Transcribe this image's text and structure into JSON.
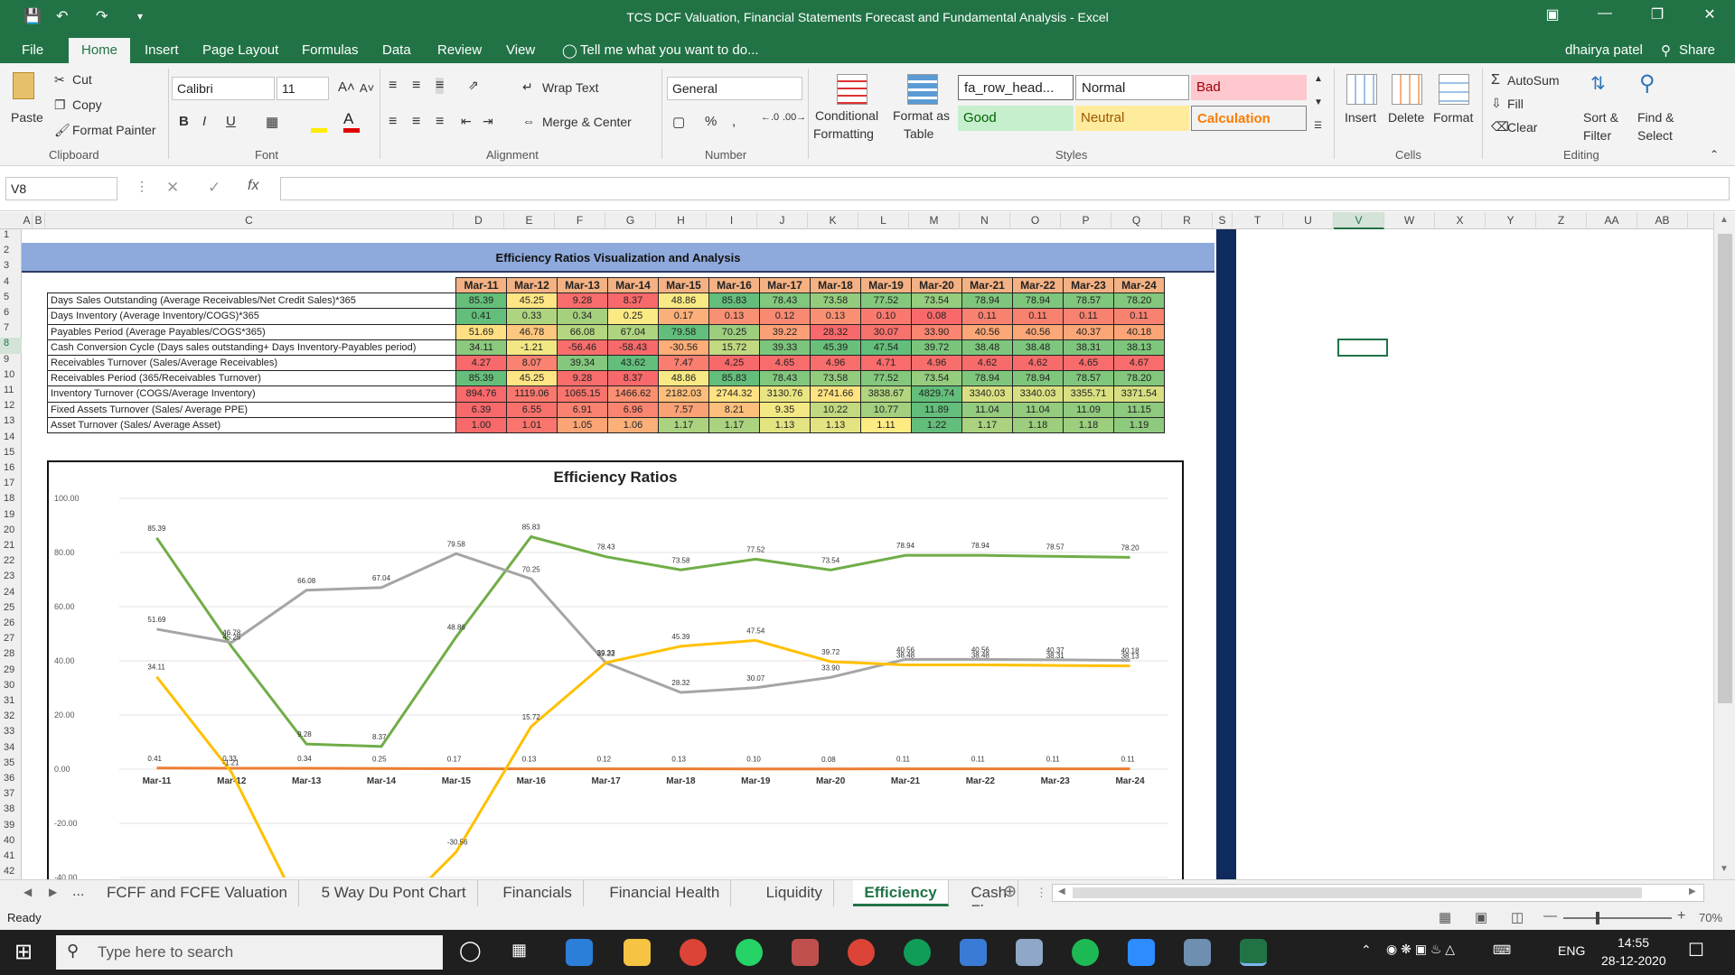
{
  "window": {
    "title": "TCS DCF Valuation, Financial Statements Forecast and Fundamental Analysis - Excel"
  },
  "menu": {
    "items": [
      "File",
      "Home",
      "Insert",
      "Page Layout",
      "Formulas",
      "Data",
      "Review",
      "View"
    ],
    "tell_me": "Tell me what you want to do...",
    "user": "dhairya patel",
    "share": "Share"
  },
  "ribbon": {
    "clipboard": {
      "paste": "Paste",
      "cut": "Cut",
      "copy": "Copy",
      "format_painter": "Format Painter",
      "label": "Clipboard"
    },
    "font": {
      "name": "Calibri",
      "size": "11",
      "label": "Font"
    },
    "alignment": {
      "wrap": "Wrap Text",
      "merge": "Merge & Center",
      "label": "Alignment"
    },
    "number": {
      "format": "General",
      "label": "Number"
    },
    "styles": {
      "conditional": "Conditional",
      "formatting": "Formatting",
      "format_as": "Format as",
      "table": "Table",
      "cell1": "fa_row_head...",
      "normal": "Normal",
      "bad": "Bad",
      "good": "Good",
      "neutral": "Neutral",
      "calculation": "Calculation",
      "label": "Styles"
    },
    "cells": {
      "insert": "Insert",
      "delete": "Delete",
      "format": "Format",
      "label": "Cells"
    },
    "editing": {
      "autosum": "AutoSum",
      "fill": "Fill",
      "clear": "Clear",
      "sort": "Sort &",
      "filter": "Filter",
      "find": "Find &",
      "select": "Select",
      "label": "Editing"
    }
  },
  "formula_bar": {
    "name_box": "V8",
    "formula": ""
  },
  "columns": [
    "A",
    "B",
    "C",
    "D",
    "E",
    "F",
    "G",
    "H",
    "I",
    "J",
    "K",
    "L",
    "M",
    "N",
    "O",
    "P",
    "Q",
    "R",
    "S",
    "T",
    "U",
    "V",
    "W",
    "X",
    "Y",
    "Z",
    "AA",
    "AB"
  ],
  "sheet": {
    "banner": "Efficiency Ratios Visualization and Analysis",
    "years": [
      "Mar-11",
      "Mar-12",
      "Mar-13",
      "Mar-14",
      "Mar-15",
      "Mar-16",
      "Mar-17",
      "Mar-18",
      "Mar-19",
      "Mar-20",
      "Mar-21",
      "Mar-22",
      "Mar-23",
      "Mar-24"
    ],
    "rows": [
      {
        "label": "Days Sales Outstanding (Average Receivables/Net Credit Sales)*365",
        "values": [
          "85.39",
          "45.25",
          "9.28",
          "8.37",
          "48.86",
          "85.83",
          "78.43",
          "73.58",
          "77.52",
          "73.54",
          "78.94",
          "78.94",
          "78.57",
          "78.20"
        ]
      },
      {
        "label": "Days Inventory  (Average Inventory/COGS)*365",
        "values": [
          "0.41",
          "0.33",
          "0.34",
          "0.25",
          "0.17",
          "0.13",
          "0.12",
          "0.13",
          "0.10",
          "0.08",
          "0.11",
          "0.11",
          "0.11",
          "0.11"
        ]
      },
      {
        "label": "Payables Period (Average Payables/COGS*365)",
        "values": [
          "51.69",
          "46.78",
          "66.08",
          "67.04",
          "79.58",
          "70.25",
          "39.22",
          "28.32",
          "30.07",
          "33.90",
          "40.56",
          "40.56",
          "40.37",
          "40.18"
        ]
      },
      {
        "label": "Cash Conversion Cycle (Days sales outstanding+ Days Inventory-Payables period)",
        "values": [
          "34.11",
          "-1.21",
          "-56.46",
          "-58.43",
          "-30.56",
          "15.72",
          "39.33",
          "45.39",
          "47.54",
          "39.72",
          "38.48",
          "38.48",
          "38.31",
          "38.13"
        ]
      },
      {
        "label": "Receivables Turnover (Sales/Average Receivables)",
        "values": [
          "4.27",
          "8.07",
          "39.34",
          "43.62",
          "7.47",
          "4.25",
          "4.65",
          "4.96",
          "4.71",
          "4.96",
          "4.62",
          "4.62",
          "4.65",
          "4.67"
        ]
      },
      {
        "label": "Receivables Period (365/Receivables Turnover)",
        "values": [
          "85.39",
          "45.25",
          "9.28",
          "8.37",
          "48.86",
          "85.83",
          "78.43",
          "73.58",
          "77.52",
          "73.54",
          "78.94",
          "78.94",
          "78.57",
          "78.20"
        ]
      },
      {
        "label": "Inventory Turnover (COGS/Average Inventory)",
        "values": [
          "894.76",
          "1119.06",
          "1065.15",
          "1466.62",
          "2182.03",
          "2744.32",
          "3130.76",
          "2741.66",
          "3838.67",
          "4829.74",
          "3340.03",
          "3340.03",
          "3355.71",
          "3371.54"
        ]
      },
      {
        "label": "Fixed Assets Turnover (Sales/ Average PPE)",
        "values": [
          "6.39",
          "6.55",
          "6.91",
          "6.96",
          "7.57",
          "8.21",
          "9.35",
          "10.22",
          "10.77",
          "11.89",
          "11.04",
          "11.04",
          "11.09",
          "11.15"
        ]
      },
      {
        "label": "Asset Turnover (Sales/ Average Asset)",
        "values": [
          "1.00",
          "1.01",
          "1.05",
          "1.06",
          "1.17",
          "1.17",
          "1.13",
          "1.13",
          "1.11",
          "1.22",
          "1.17",
          "1.18",
          "1.18",
          "1.19"
        ]
      }
    ]
  },
  "chart_data": {
    "type": "line",
    "title": "Efficiency Ratios",
    "categories": [
      "Mar-11",
      "Mar-12",
      "Mar-13",
      "Mar-14",
      "Mar-15",
      "Mar-16",
      "Mar-17",
      "Mar-18",
      "Mar-19",
      "Mar-20",
      "Mar-21",
      "Mar-22",
      "Mar-23",
      "Mar-24"
    ],
    "ylim": [
      -40,
      100
    ],
    "yticks": [
      "100.00",
      "80.00",
      "60.00",
      "40.00",
      "20.00",
      "0.00",
      "-20.00",
      "-40.00"
    ],
    "series": [
      {
        "color": "#70ad47",
        "values": [
          85.39,
          45.25,
          9.28,
          8.37,
          48.86,
          85.83,
          78.43,
          73.58,
          77.52,
          73.54,
          78.94,
          78.94,
          78.57,
          78.2
        ]
      },
      {
        "color": "#ed7d31",
        "values": [
          0.41,
          0.33,
          0.34,
          0.25,
          0.17,
          0.13,
          0.12,
          0.13,
          0.1,
          0.08,
          0.11,
          0.11,
          0.11,
          0.11
        ]
      },
      {
        "color": "#a5a5a5",
        "values": [
          51.69,
          46.78,
          66.08,
          67.04,
          79.58,
          70.25,
          39.22,
          28.32,
          30.07,
          33.9,
          40.56,
          40.56,
          40.37,
          40.18
        ]
      },
      {
        "color": "#ffc000",
        "values": [
          34.11,
          -1.21,
          -56.46,
          -58.43,
          -30.56,
          15.72,
          39.33,
          45.39,
          47.54,
          39.72,
          38.48,
          38.48,
          38.31,
          38.13
        ]
      }
    ]
  },
  "tabs": {
    "items": [
      "FCFF and FCFE Valuation",
      "5 Way Du Pont Chart",
      "Financials",
      "Financial Health",
      "Liquidity",
      "Efficiency",
      "Cash Flow Ra ..."
    ],
    "active": "Efficiency",
    "ellipsis": "..."
  },
  "status": {
    "ready": "Ready",
    "zoom": "70%"
  },
  "taskbar": {
    "search": "Type here to search",
    "lang": "ENG",
    "time": "14:55",
    "date": "28-12-2020"
  }
}
